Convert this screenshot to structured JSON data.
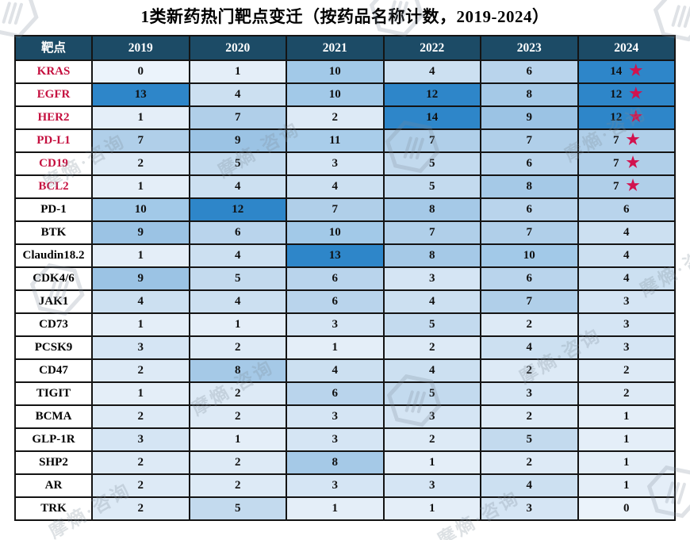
{
  "title": "1类新药热门靶点变迁（按药品名称计数，2019-2024）",
  "watermark": {
    "text": "摩熵·咨询",
    "logo": "hexagon-hand-logo"
  },
  "colors": {
    "header_bg": "#1c4b66",
    "header_text": "#ffffff",
    "border": "#141414",
    "cell_text": "#111111",
    "label_normal": "#000000",
    "label_highlight": "#c5103f",
    "star": "#d2124e",
    "scale": {
      "0": "#ebf3fb",
      "1": "#e4eef8",
      "2": "#ddeaf6",
      "3": "#d5e5f4",
      "4": "#cce0f1",
      "5": "#c3daee",
      "6": "#b9d4ec",
      "7": "#b0cfe9",
      "8": "#a5c9e7",
      "9": "#9bc3e4",
      "10": "#a2c9e8",
      "11": "#a9cdea",
      "12": "#2e86c9",
      "13": "#2e86c9",
      "14": "#2e86c9"
    }
  },
  "table": {
    "star_symbol": "★",
    "header": [
      "靶点",
      "2019",
      "2020",
      "2021",
      "2022",
      "2023",
      "2024"
    ],
    "rows": [
      {
        "label": "KRAS",
        "highlight": true,
        "star": true,
        "values": [
          0,
          1,
          10,
          4,
          6,
          14
        ]
      },
      {
        "label": "EGFR",
        "highlight": true,
        "star": true,
        "values": [
          13,
          4,
          10,
          12,
          8,
          12
        ]
      },
      {
        "label": "HER2",
        "highlight": true,
        "star": true,
        "values": [
          1,
          7,
          2,
          14,
          9,
          12
        ]
      },
      {
        "label": "PD-L1",
        "highlight": true,
        "star": true,
        "values": [
          7,
          9,
          11,
          7,
          7,
          7
        ]
      },
      {
        "label": "CD19",
        "highlight": true,
        "star": true,
        "values": [
          2,
          5,
          3,
          5,
          6,
          7
        ]
      },
      {
        "label": "BCL2",
        "highlight": true,
        "star": true,
        "values": [
          1,
          4,
          4,
          5,
          8,
          7
        ]
      },
      {
        "label": "PD-1",
        "highlight": false,
        "star": false,
        "values": [
          10,
          12,
          7,
          8,
          6,
          6
        ]
      },
      {
        "label": "BTK",
        "highlight": false,
        "star": false,
        "values": [
          9,
          6,
          10,
          7,
          7,
          4
        ]
      },
      {
        "label": "Claudin18.2",
        "highlight": false,
        "star": false,
        "values": [
          1,
          4,
          13,
          8,
          10,
          4
        ]
      },
      {
        "label": "CDK4/6",
        "highlight": false,
        "star": false,
        "values": [
          9,
          5,
          6,
          3,
          6,
          4
        ]
      },
      {
        "label": "JAK1",
        "highlight": false,
        "star": false,
        "values": [
          4,
          4,
          6,
          4,
          7,
          3
        ]
      },
      {
        "label": "CD73",
        "highlight": false,
        "star": false,
        "values": [
          1,
          1,
          3,
          5,
          2,
          3
        ]
      },
      {
        "label": "PCSK9",
        "highlight": false,
        "star": false,
        "values": [
          3,
          2,
          1,
          2,
          4,
          3
        ]
      },
      {
        "label": "CD47",
        "highlight": false,
        "star": false,
        "values": [
          2,
          8,
          4,
          4,
          2,
          2
        ]
      },
      {
        "label": "TIGIT",
        "highlight": false,
        "star": false,
        "values": [
          1,
          2,
          6,
          5,
          3,
          2
        ]
      },
      {
        "label": "BCMA",
        "highlight": false,
        "star": false,
        "values": [
          2,
          2,
          3,
          3,
          2,
          1
        ]
      },
      {
        "label": "GLP-1R",
        "highlight": false,
        "star": false,
        "values": [
          3,
          1,
          3,
          2,
          5,
          1
        ]
      },
      {
        "label": "SHP2",
        "highlight": false,
        "star": false,
        "values": [
          2,
          2,
          8,
          1,
          2,
          1
        ]
      },
      {
        "label": "AR",
        "highlight": false,
        "star": false,
        "values": [
          2,
          2,
          3,
          3,
          4,
          1
        ]
      },
      {
        "label": "TRK",
        "highlight": false,
        "star": false,
        "values": [
          2,
          5,
          1,
          1,
          3,
          0
        ]
      }
    ]
  },
  "chart_data": {
    "type": "heatmap",
    "title": "1类新药热门靶点变迁（按药品名称计数，2019-2024）",
    "x": [
      "2019",
      "2020",
      "2021",
      "2022",
      "2023",
      "2024"
    ],
    "y": [
      "KRAS",
      "EGFR",
      "HER2",
      "PD-L1",
      "CD19",
      "BCL2",
      "PD-1",
      "BTK",
      "Claudin18.2",
      "CDK4/6",
      "JAK1",
      "CD73",
      "PCSK9",
      "CD47",
      "TIGIT",
      "BCMA",
      "GLP-1R",
      "SHP2",
      "AR",
      "TRK"
    ],
    "values": [
      [
        0,
        1,
        10,
        4,
        6,
        14
      ],
      [
        13,
        4,
        10,
        12,
        8,
        12
      ],
      [
        1,
        7,
        2,
        14,
        9,
        12
      ],
      [
        7,
        9,
        11,
        7,
        7,
        7
      ],
      [
        2,
        5,
        3,
        5,
        6,
        7
      ],
      [
        1,
        4,
        4,
        5,
        8,
        7
      ],
      [
        10,
        12,
        7,
        8,
        6,
        6
      ],
      [
        9,
        6,
        10,
        7,
        7,
        4
      ],
      [
        1,
        4,
        13,
        8,
        10,
        4
      ],
      [
        9,
        5,
        6,
        3,
        6,
        4
      ],
      [
        4,
        4,
        6,
        4,
        7,
        3
      ],
      [
        1,
        1,
        3,
        5,
        2,
        3
      ],
      [
        3,
        2,
        1,
        2,
        4,
        3
      ],
      [
        2,
        8,
        4,
        4,
        2,
        2
      ],
      [
        1,
        2,
        6,
        5,
        3,
        2
      ],
      [
        2,
        2,
        3,
        3,
        2,
        1
      ],
      [
        3,
        1,
        3,
        2,
        5,
        1
      ],
      [
        2,
        2,
        8,
        1,
        2,
        1
      ],
      [
        2,
        2,
        3,
        3,
        4,
        1
      ],
      [
        2,
        5,
        1,
        1,
        3,
        0
      ]
    ],
    "starred_rows_2024": [
      "KRAS",
      "EGFR",
      "HER2",
      "PD-L1",
      "CD19",
      "BCL2"
    ],
    "color_scale": "light blue (low) to saturated blue (high, >=12)",
    "legend": "none",
    "grid": "black cell borders"
  }
}
